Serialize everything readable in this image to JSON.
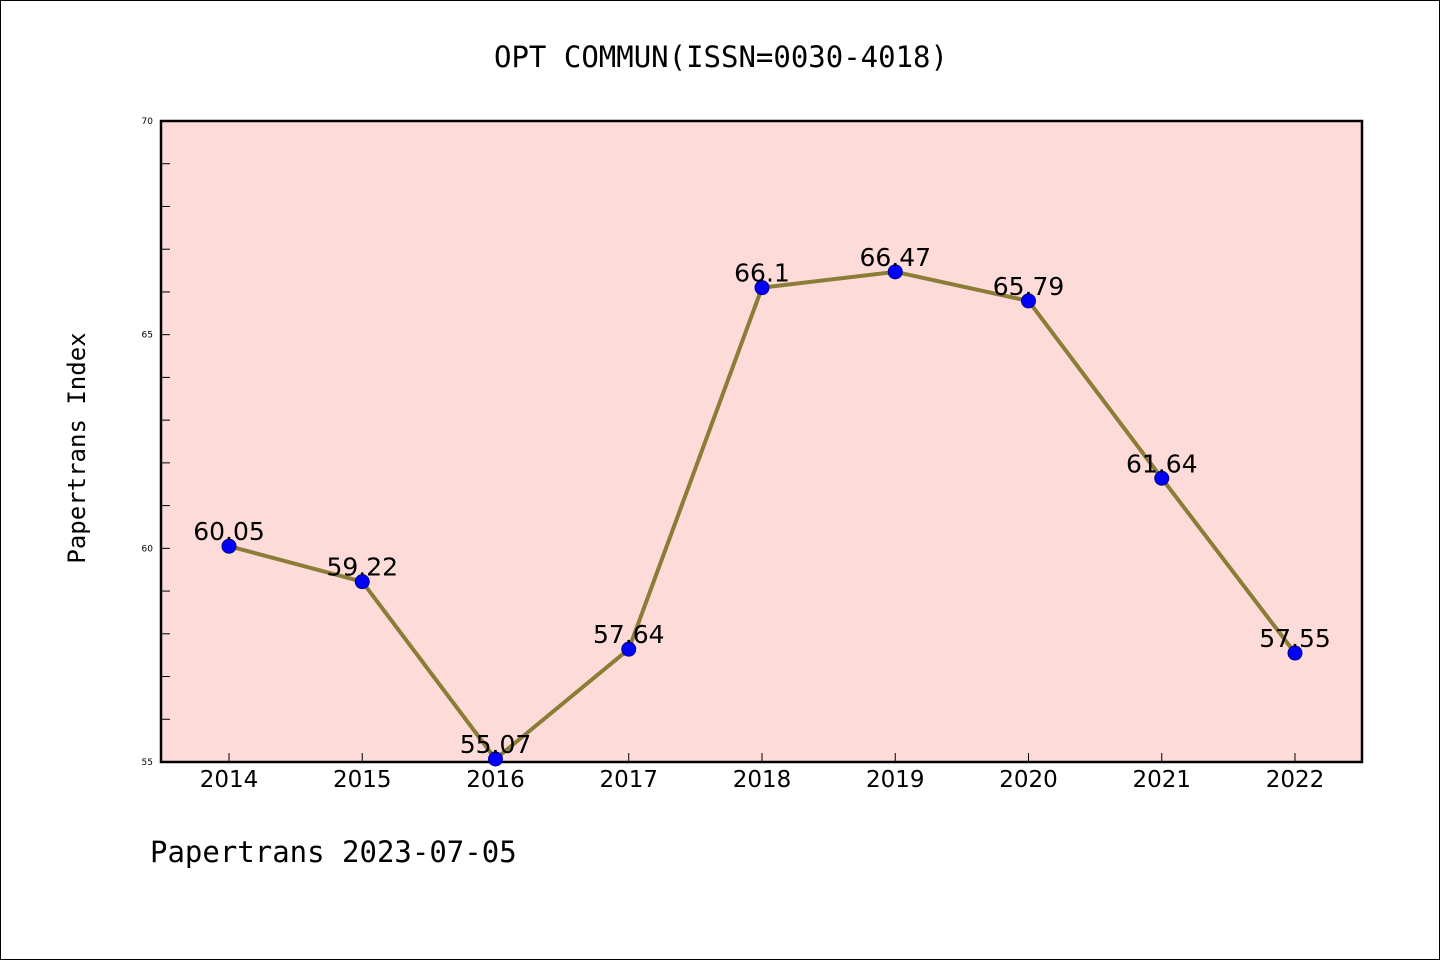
{
  "chart_data": {
    "type": "line",
    "title": "OPT COMMUN(ISSN=0030-4018)",
    "xlabel": "",
    "ylabel": "Papertrans Index",
    "x": [
      "2014",
      "2015",
      "2016",
      "2017",
      "2018",
      "2019",
      "2020",
      "2021",
      "2022"
    ],
    "values": [
      60.05,
      59.22,
      55.07,
      57.64,
      66.1,
      66.47,
      65.79,
      61.64,
      57.55
    ],
    "data_labels": [
      "60.05",
      "59.22",
      "55.07",
      "57.64",
      "66.1",
      "66.47",
      "65.79",
      "61.64",
      "57.55"
    ],
    "ylim": [
      55,
      70
    ],
    "yticks": [
      "55",
      "60",
      "65",
      "70"
    ],
    "grid": false,
    "legend": "none"
  },
  "footer": {
    "text": "Papertrans 2023-07-05"
  },
  "colors": {
    "plot_background": "#fddbd8",
    "line": "#8b7c38",
    "marker": "#0000ff",
    "axis": "#000000"
  }
}
